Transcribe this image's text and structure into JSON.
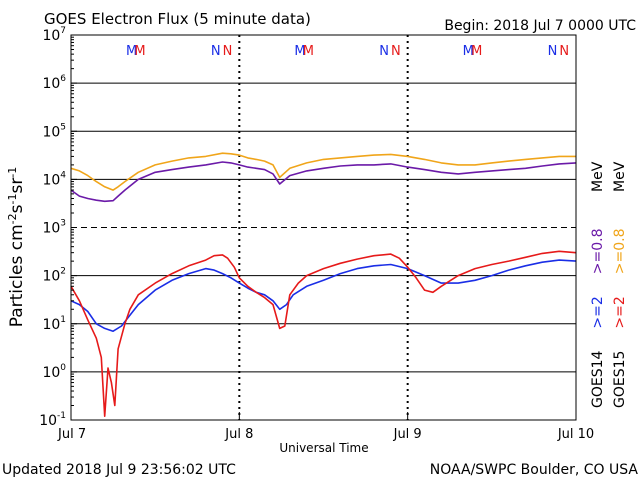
{
  "chart_data": {
    "type": "line",
    "title": "GOES Electron Flux (5 minute data)",
    "begin_label": "Begin: 2018 Jul 7 0000 UTC",
    "xlabel": "Universal Time",
    "ylabel_base": "Particles cm",
    "ylabel_exp1": "-2",
    "ylabel_mid1": "s",
    "ylabel_exp2": "-1",
    "ylabel_mid2": "sr",
    "ylabel_exp3": "-1",
    "y_scale": "log",
    "ylim": [
      0.1,
      10000000
    ],
    "xlim": [
      0,
      3
    ],
    "x_ticks": [
      {
        "x": 0,
        "label": "Jul 7"
      },
      {
        "x": 1,
        "label": "Jul 8"
      },
      {
        "x": 2,
        "label": "Jul 9"
      },
      {
        "x": 3,
        "label": "Jul 10"
      }
    ],
    "y_ticks": [
      {
        "exp": -1,
        "base": "10",
        "sup": "-1"
      },
      {
        "exp": 0,
        "base": "10",
        "sup": "0"
      },
      {
        "exp": 1,
        "base": "10",
        "sup": "1"
      },
      {
        "exp": 2,
        "base": "10",
        "sup": "2"
      },
      {
        "exp": 3,
        "base": "10",
        "sup": "3"
      },
      {
        "exp": 4,
        "base": "10",
        "sup": "4"
      },
      {
        "exp": 5,
        "base": "10",
        "sup": "5"
      },
      {
        "exp": 6,
        "base": "10",
        "sup": "6"
      },
      {
        "exp": 7,
        "base": "10",
        "sup": "7"
      }
    ],
    "grid": "horizontal lines at decades; 10^3 dashed",
    "markers": [
      {
        "x": 0.36,
        "text": "M",
        "color": "#1a2ee6"
      },
      {
        "x": 0.41,
        "text": "M",
        "color": "#e61a1a"
      },
      {
        "x": 0.86,
        "text": "N",
        "color": "#1a2ee6"
      },
      {
        "x": 0.93,
        "text": "N",
        "color": "#e61a1a"
      },
      {
        "x": 1.36,
        "text": "M",
        "color": "#1a2ee6"
      },
      {
        "x": 1.41,
        "text": "M",
        "color": "#e61a1a"
      },
      {
        "x": 1.86,
        "text": "N",
        "color": "#1a2ee6"
      },
      {
        "x": 1.93,
        "text": "N",
        "color": "#e61a1a"
      },
      {
        "x": 2.36,
        "text": "M",
        "color": "#1a2ee6"
      },
      {
        "x": 2.41,
        "text": "M",
        "color": "#e61a1a"
      },
      {
        "x": 2.86,
        "text": "N",
        "color": "#1a2ee6"
      },
      {
        "x": 2.93,
        "text": "N",
        "color": "#e61a1a"
      }
    ],
    "legend": [
      {
        "satellite": "GOES14",
        "label_gt2": ">=2",
        "label_gt08": ">=0.8",
        "color_gt2": "#1a2ee6",
        "color_gt08": "#6b1aa8"
      },
      {
        "satellite": "GOES15",
        "label_gt2": ">=2",
        "label_gt08": ">=0.8",
        "color_gt2": "#e61a1a",
        "color_gt08": "#f0a51a"
      }
    ],
    "legend_unit": "MeV",
    "legend_placement": "right",
    "series": [
      {
        "color": "#f0a51a",
        "x": [
          0,
          0.05,
          0.1,
          0.15,
          0.2,
          0.25,
          0.28,
          0.32,
          0.4,
          0.5,
          0.6,
          0.7,
          0.8,
          0.9,
          0.95,
          1.0,
          1.05,
          1.1,
          1.15,
          1.2,
          1.24,
          1.3,
          1.4,
          1.5,
          1.6,
          1.7,
          1.8,
          1.9,
          2.0,
          2.1,
          2.2,
          2.3,
          2.4,
          2.5,
          2.6,
          2.7,
          2.8,
          2.9,
          3.0
        ],
        "y": [
          17000,
          15000,
          12000,
          9000,
          7000,
          6000,
          7000,
          9000,
          14000,
          20000,
          24000,
          28000,
          30000,
          35000,
          34000,
          32000,
          28000,
          26000,
          24000,
          20000,
          11000,
          17000,
          22000,
          26000,
          28000,
          30000,
          32000,
          33000,
          30000,
          26000,
          22000,
          20000,
          20000,
          22000,
          24000,
          26000,
          28000,
          30000,
          30000
        ]
      },
      {
        "color": "#6b1aa8",
        "x": [
          0,
          0.05,
          0.1,
          0.15,
          0.2,
          0.25,
          0.28,
          0.32,
          0.4,
          0.5,
          0.6,
          0.7,
          0.8,
          0.9,
          0.95,
          1.0,
          1.05,
          1.1,
          1.15,
          1.2,
          1.24,
          1.3,
          1.4,
          1.5,
          1.6,
          1.7,
          1.8,
          1.9,
          2.0,
          2.1,
          2.2,
          2.3,
          2.4,
          2.5,
          2.6,
          2.7,
          2.8,
          2.9,
          3.0
        ],
        "y": [
          6000,
          4500,
          4000,
          3700,
          3500,
          3600,
          4500,
          6000,
          10000,
          14000,
          16000,
          18000,
          20000,
          23000,
          22000,
          20000,
          18000,
          17000,
          16000,
          13000,
          8000,
          12000,
          15000,
          17000,
          19000,
          20000,
          20000,
          21000,
          18000,
          16000,
          14000,
          13000,
          14000,
          15000,
          16000,
          17000,
          19000,
          21000,
          22000
        ]
      },
      {
        "color": "#1a2ee6",
        "x": [
          0,
          0.05,
          0.1,
          0.15,
          0.2,
          0.25,
          0.3,
          0.35,
          0.4,
          0.5,
          0.6,
          0.7,
          0.8,
          0.85,
          0.9,
          0.95,
          1.0,
          1.05,
          1.1,
          1.15,
          1.2,
          1.24,
          1.28,
          1.32,
          1.4,
          1.5,
          1.6,
          1.7,
          1.8,
          1.9,
          2.0,
          2.1,
          2.2,
          2.3,
          2.4,
          2.5,
          2.6,
          2.7,
          2.8,
          2.9,
          3.0
        ],
        "y": [
          30,
          25,
          18,
          10,
          8,
          7,
          9,
          15,
          25,
          50,
          80,
          110,
          140,
          130,
          110,
          90,
          70,
          55,
          45,
          40,
          30,
          20,
          25,
          40,
          60,
          80,
          110,
          140,
          160,
          170,
          140,
          100,
          70,
          70,
          80,
          100,
          130,
          160,
          190,
          210,
          200
        ]
      },
      {
        "color": "#e61a1a",
        "x": [
          0,
          0.05,
          0.1,
          0.15,
          0.18,
          0.2,
          0.22,
          0.24,
          0.26,
          0.28,
          0.32,
          0.35,
          0.4,
          0.5,
          0.6,
          0.7,
          0.8,
          0.85,
          0.9,
          0.93,
          0.97,
          1.0,
          1.05,
          1.1,
          1.15,
          1.2,
          1.24,
          1.27,
          1.3,
          1.35,
          1.4,
          1.5,
          1.6,
          1.7,
          1.8,
          1.9,
          1.95,
          2.0,
          2.05,
          2.1,
          2.15,
          2.2,
          2.3,
          2.4,
          2.5,
          2.6,
          2.7,
          2.8,
          2.9,
          3.0
        ],
        "y": [
          60,
          30,
          12,
          5,
          2,
          0.12,
          1.2,
          0.6,
          0.2,
          3,
          10,
          20,
          40,
          70,
          110,
          160,
          210,
          260,
          270,
          230,
          150,
          90,
          60,
          45,
          35,
          25,
          8,
          9,
          40,
          70,
          100,
          140,
          180,
          220,
          260,
          280,
          230,
          150,
          90,
          50,
          45,
          60,
          100,
          140,
          170,
          200,
          240,
          290,
          320,
          300
        ]
      }
    ]
  },
  "footer": {
    "updated": "Updated 2018 Jul  9 23:56:02 UTC",
    "credit": "NOAA/SWPC Boulder, CO USA"
  }
}
